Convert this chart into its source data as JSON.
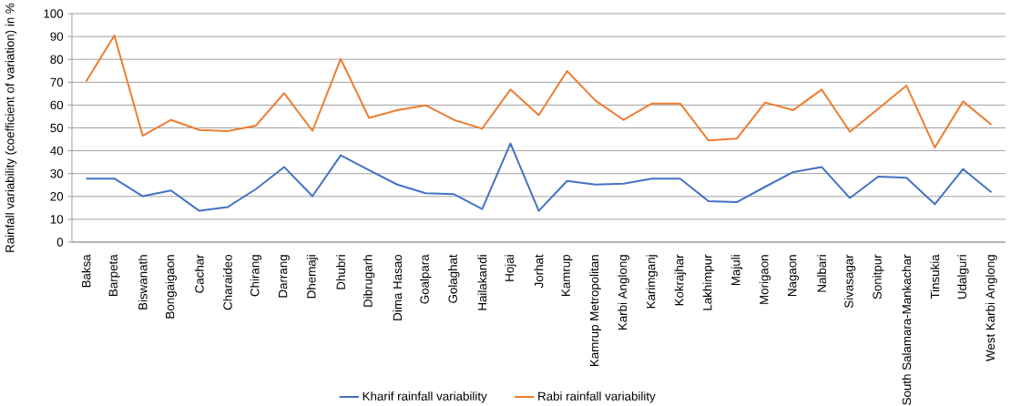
{
  "chart_data": {
    "type": "line",
    "ylabel": "Rainfall variability (coefficient of variation) in %",
    "categories": [
      "Baksa",
      "Barpeta",
      "Biswanath",
      "Bongaigaon",
      "Cachar",
      "Charaideo",
      "Chirang",
      "Darrang",
      "Dhemaji",
      "Dhubri",
      "Dibrugarh",
      "Dima Hasao",
      "Goalpara",
      "Golaghat",
      "Hailakandi",
      "Hojai",
      "Jorhat",
      "Kamrup",
      "Kamrup Metropolitan",
      "Karbi Anglong",
      "Karimganj",
      "Kokrajhar",
      "Lakhimpur",
      "Majuli",
      "Morigaon",
      "Nagaon",
      "Nalbari",
      "Sivasagar",
      "Sonitpur",
      "South Salamara-Mankachar",
      "Tinsukia",
      "Udalguri",
      "West Karbi Anglong"
    ],
    "series": [
      {
        "name": "Kharif rainfall variability",
        "color": "#4472c4",
        "values": [
          27.8,
          27.8,
          20.1,
          22.6,
          13.7,
          15.3,
          23.2,
          32.9,
          20.1,
          38.0,
          31.5,
          25.2,
          21.4,
          21.0,
          14.5,
          43.2,
          13.7,
          26.8,
          25.2,
          25.6,
          27.8,
          27.8,
          17.9,
          17.5,
          24.2,
          30.7,
          32.9,
          19.3,
          28.7,
          28.2,
          16.6,
          32.0,
          21.8
        ]
      },
      {
        "name": "Rabi rainfall variability",
        "color": "#ed7d31",
        "values": [
          70.3,
          90.4,
          46.6,
          53.5,
          49.1,
          48.6,
          51.0,
          65.2,
          48.7,
          80.2,
          54.4,
          57.8,
          59.9,
          53.5,
          49.7,
          66.8,
          55.6,
          74.9,
          62.0,
          53.5,
          60.7,
          60.7,
          44.5,
          45.3,
          61.1,
          57.8,
          66.8,
          48.3,
          58.4,
          68.5,
          41.4,
          61.6,
          51.4
        ]
      }
    ],
    "ylim": [
      0,
      100
    ],
    "yticks": [
      0,
      10,
      20,
      30,
      40,
      50,
      60,
      70,
      80,
      90,
      100
    ],
    "grid": "y",
    "legend": "bottom",
    "marker": "none",
    "line_style": "solid"
  }
}
